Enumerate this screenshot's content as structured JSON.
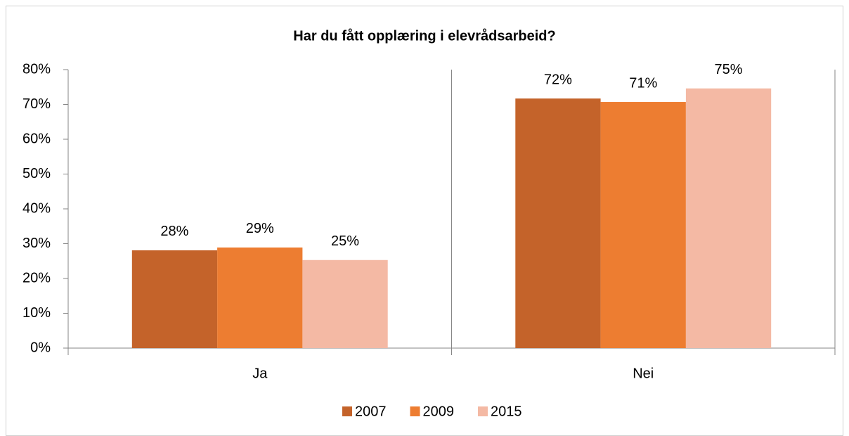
{
  "chart_data": {
    "type": "bar",
    "title": "Har du fått opplæring i elevrådsarbeid?",
    "categories": [
      "Ja",
      "Nei"
    ],
    "series": [
      {
        "name": "2007",
        "color": "#c4632a",
        "values": [
          28.1,
          71.7
        ],
        "value_labels": [
          "28%",
          "72%"
        ]
      },
      {
        "name": "2009",
        "color": "#ed7d31",
        "values": [
          28.9,
          70.7
        ],
        "value_labels": [
          "29%",
          "71%"
        ]
      },
      {
        "name": "2015",
        "color": "#f4b9a4",
        "values": [
          25.3,
          74.6
        ],
        "value_labels": [
          "25%",
          "75%"
        ]
      }
    ],
    "ylim": [
      0,
      80
    ],
    "yticks": [
      {
        "value": 0,
        "label": "0%"
      },
      {
        "value": 10,
        "label": "10%"
      },
      {
        "value": 20,
        "label": "20%"
      },
      {
        "value": 30,
        "label": "30%"
      },
      {
        "value": 40,
        "label": "40%"
      },
      {
        "value": 50,
        "label": "50%"
      },
      {
        "value": 60,
        "label": "60%"
      },
      {
        "value": 70,
        "label": "70%"
      },
      {
        "value": 80,
        "label": "80%"
      }
    ],
    "grid": false,
    "legend": "bottom"
  }
}
